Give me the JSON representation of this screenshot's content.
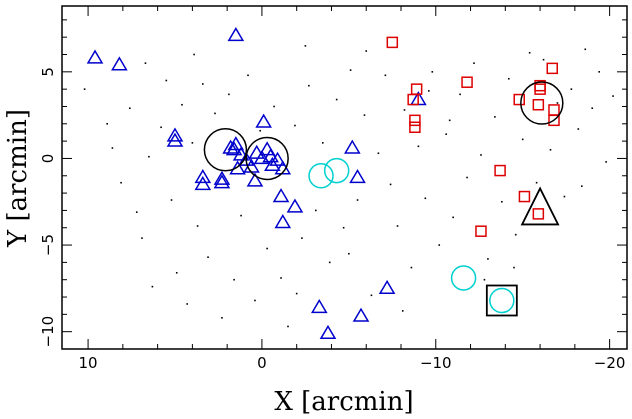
{
  "chart_data": {
    "type": "scatter",
    "title": "",
    "xlabel": "X [arcmin]",
    "ylabel": "Y [arcmin]",
    "xlim": [
      11.5,
      -21.0
    ],
    "ylim": [
      -11.0,
      8.8
    ],
    "x_ticks": [
      10,
      0,
      -10,
      -20
    ],
    "y_ticks": [
      -10,
      -5,
      0,
      5
    ],
    "x_tick_labels": [
      "10",
      "0",
      "−10",
      "−20"
    ],
    "y_tick_labels": [
      "−10",
      "−5",
      "0",
      "5"
    ],
    "grid": false,
    "colors": {
      "triangles": "#0000cc",
      "squares": "#dd0000",
      "cyan_circles": "#00d0d0",
      "black": "#000000"
    },
    "series": [
      {
        "marker": "triangle",
        "color": "#0000cc",
        "points": [
          [
            9.6,
            5.8
          ],
          [
            8.2,
            5.4
          ],
          [
            1.5,
            7.1
          ],
          [
            5.0,
            1.0
          ],
          [
            5.0,
            1.3
          ],
          [
            -0.1,
            2.1
          ],
          [
            1.5,
            0.8
          ],
          [
            1.8,
            0.6
          ],
          [
            1.6,
            0.5
          ],
          [
            1.2,
            0.2
          ],
          [
            0.3,
            0.3
          ],
          [
            -0.3,
            0.5
          ],
          [
            0.0,
            0.0
          ],
          [
            -0.5,
            0.1
          ],
          [
            0.9,
            -0.1
          ],
          [
            -0.9,
            -0.1
          ],
          [
            -0.6,
            -0.4
          ],
          [
            1.4,
            -0.6
          ],
          [
            0.6,
            -0.5
          ],
          [
            -1.2,
            -0.6
          ],
          [
            2.3,
            -1.2
          ],
          [
            2.3,
            -1.4
          ],
          [
            3.4,
            -1.1
          ],
          [
            3.4,
            -1.5
          ],
          [
            0.4,
            -1.3
          ],
          [
            -1.1,
            -2.2
          ],
          [
            -1.9,
            -2.8
          ],
          [
            -1.2,
            -3.7
          ],
          [
            -5.2,
            0.6
          ],
          [
            -5.5,
            -1.1
          ],
          [
            -3.3,
            -8.6
          ],
          [
            -3.8,
            -10.1
          ],
          [
            -5.7,
            -9.1
          ],
          [
            -7.2,
            -7.5
          ],
          [
            -9.0,
            3.4
          ]
        ]
      },
      {
        "marker": "square",
        "color": "#dd0000",
        "points": [
          [
            -7.5,
            6.7
          ],
          [
            -8.7,
            3.4
          ],
          [
            -8.9,
            4.0
          ],
          [
            -8.8,
            2.2
          ],
          [
            -8.8,
            1.8
          ],
          [
            -11.8,
            4.4
          ],
          [
            -14.8,
            3.4
          ],
          [
            -16.0,
            4.0
          ],
          [
            -16.0,
            4.2
          ],
          [
            -16.7,
            5.2
          ],
          [
            -15.9,
            3.1
          ],
          [
            -16.8,
            2.8
          ],
          [
            -16.8,
            2.2
          ],
          [
            -13.7,
            -0.7
          ],
          [
            -15.1,
            -2.2
          ],
          [
            -15.9,
            -3.2
          ],
          [
            -12.6,
            -4.2
          ]
        ]
      },
      {
        "marker": "circle-large",
        "color": "#000000",
        "points": [
          [
            2.1,
            0.5
          ],
          [
            -0.3,
            0.0
          ],
          [
            -16.1,
            3.2
          ]
        ]
      },
      {
        "marker": "circle-cyan",
        "color": "#00d0d0",
        "points": [
          [
            -3.4,
            -1.0
          ],
          [
            -4.3,
            -0.7
          ],
          [
            -11.6,
            -6.9
          ],
          [
            -13.8,
            -8.2
          ]
        ]
      },
      {
        "marker": "triangle-large",
        "color": "#000000",
        "points": [
          [
            -16.0,
            -3.0
          ]
        ]
      },
      {
        "marker": "square-large",
        "color": "#000000",
        "points": [
          [
            -13.8,
            -8.2
          ]
        ]
      },
      {
        "marker": "dot",
        "color": "#000000",
        "points": [
          [
            10.2,
            4.0
          ],
          [
            8.6,
            0.6
          ],
          [
            8.1,
            -1.4
          ],
          [
            7.6,
            2.9
          ],
          [
            7.2,
            -3.1
          ],
          [
            6.9,
            -4.6
          ],
          [
            6.5,
            0.1
          ],
          [
            6.3,
            -7.4
          ],
          [
            5.8,
            1.8
          ],
          [
            5.5,
            4.5
          ],
          [
            5.2,
            -2.4
          ],
          [
            4.9,
            -6.6
          ],
          [
            4.6,
            3.1
          ],
          [
            4.3,
            -8.4
          ],
          [
            4.0,
            0.9
          ],
          [
            3.7,
            -3.9
          ],
          [
            3.4,
            4.3
          ],
          [
            3.1,
            -5.7
          ],
          [
            2.7,
            2.6
          ],
          [
            2.3,
            -9.2
          ],
          [
            1.9,
            3.7
          ],
          [
            1.6,
            -7.0
          ],
          [
            1.2,
            -3.3
          ],
          [
            0.8,
            4.8
          ],
          [
            0.4,
            -8.2
          ],
          [
            0.1,
            1.6
          ],
          [
            -0.3,
            -5.2
          ],
          [
            -0.7,
            3.0
          ],
          [
            -1.1,
            -6.9
          ],
          [
            -1.5,
            -9.7
          ],
          [
            -1.9,
            1.9
          ],
          [
            -2.3,
            -4.6
          ],
          [
            -2.7,
            4.2
          ],
          [
            -3.1,
            -3.0
          ],
          [
            -3.5,
            0.9
          ],
          [
            -3.9,
            -6.0
          ],
          [
            -4.3,
            3.4
          ],
          [
            -4.7,
            -4.0
          ],
          [
            -5.1,
            5.1
          ],
          [
            -5.5,
            -2.4
          ],
          [
            -5.9,
            2.5
          ],
          [
            -6.3,
            -7.9
          ],
          [
            -6.7,
            0.3
          ],
          [
            -7.1,
            4.8
          ],
          [
            -7.4,
            -1.5
          ],
          [
            -7.8,
            -3.9
          ],
          [
            -8.2,
            2.8
          ],
          [
            -8.6,
            -6.3
          ],
          [
            -9.0,
            0.7
          ],
          [
            -9.4,
            -2.3
          ],
          [
            -9.8,
            5.0
          ],
          [
            -10.2,
            -5.0
          ],
          [
            -10.6,
            1.4
          ],
          [
            -11.0,
            -3.4
          ],
          [
            -11.4,
            3.7
          ],
          [
            -11.8,
            -1.1
          ],
          [
            -12.2,
            5.5
          ],
          [
            -12.6,
            0.2
          ],
          [
            -13.0,
            -5.8
          ],
          [
            -13.4,
            2.4
          ],
          [
            -13.8,
            -2.5
          ],
          [
            -14.2,
            4.6
          ],
          [
            -14.6,
            -4.4
          ],
          [
            -15.0,
            1.1
          ],
          [
            -15.4,
            6.1
          ],
          [
            -15.8,
            -1.4
          ],
          [
            -16.2,
            5.7
          ],
          [
            -16.6,
            0.5
          ],
          [
            -17.0,
            3.2
          ],
          [
            -17.4,
            -2.2
          ],
          [
            -17.8,
            4.0
          ],
          [
            -18.2,
            1.7
          ],
          [
            -18.6,
            6.3
          ],
          [
            -19.0,
            2.9
          ],
          [
            -19.4,
            5.0
          ],
          [
            -19.8,
            -0.2
          ],
          [
            -20.2,
            3.6
          ],
          [
            -18.4,
            -1.6
          ],
          [
            -9.6,
            3.9
          ],
          [
            -6.0,
            6.2
          ],
          [
            -2.5,
            6.5
          ],
          [
            3.9,
            6.0
          ],
          [
            6.7,
            5.5
          ],
          [
            8.9,
            2.0
          ],
          [
            -10.8,
            2.2
          ],
          [
            -12.8,
            -7.0
          ],
          [
            -8.1,
            -8.8
          ],
          [
            -5.0,
            -5.5
          ],
          [
            -2.0,
            -7.8
          ],
          [
            -14.5,
            -6.3
          ]
        ]
      }
    ]
  }
}
